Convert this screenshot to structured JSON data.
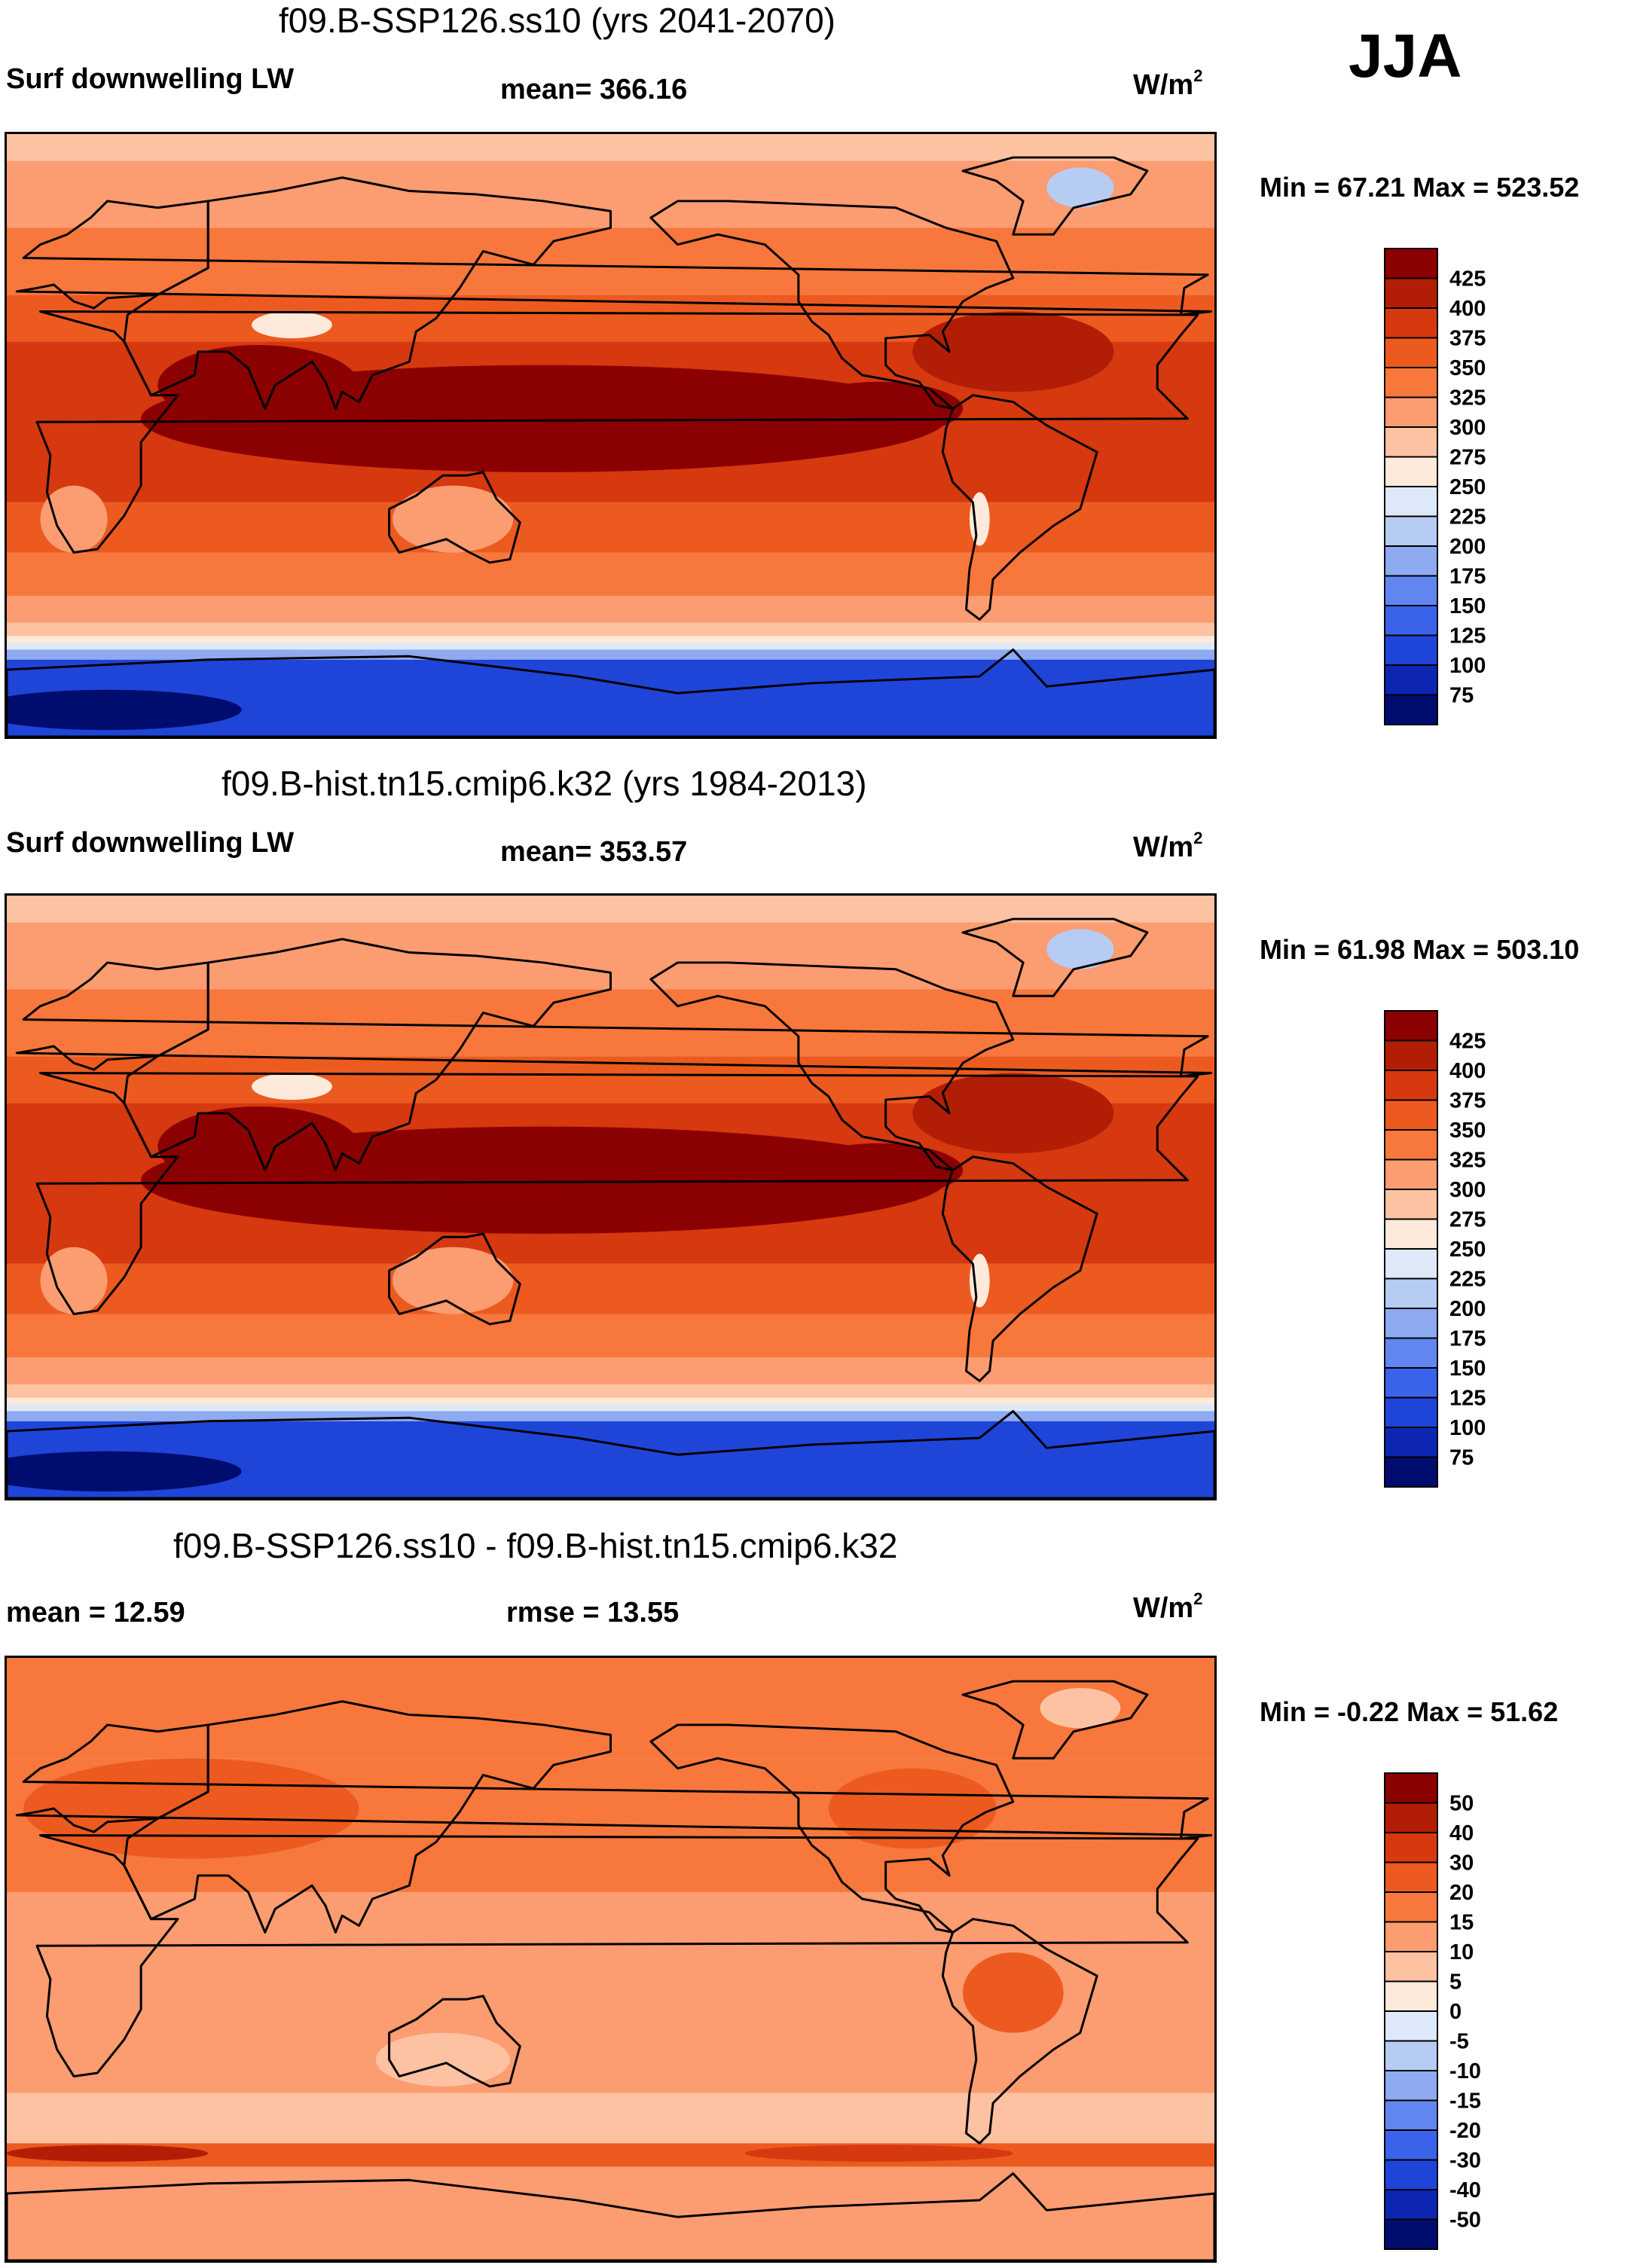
{
  "season": "JJA",
  "variable_label": "Surf downwelling LW",
  "units": "W/m",
  "units_sup": "2",
  "panels": [
    {
      "title": "f09.B-SSP126.ss10 (yrs 2041-2070)",
      "left_label": "Surf downwelling LW",
      "stat_label": "mean= 366.16",
      "units": "W/m",
      "units_sup": "2",
      "minmax": "Min =  67.21 Max = 523.52"
    },
    {
      "title": "f09.B-hist.tn15.cmip6.k32 (yrs 1984-2013)",
      "left_label": "Surf downwelling LW",
      "stat_label": "mean= 353.57",
      "units": "W/m",
      "units_sup": "2",
      "minmax": "Min = 61.98 Max = 503.10"
    },
    {
      "title": "f09.B-SSP126.ss10 - f09.B-hist.tn15.cmip6.k32",
      "left_label": "mean =  12.59",
      "stat_label": "rmse =  13.55",
      "units": "W/m",
      "units_sup": "2",
      "minmax": "Min =  -0.22 Max =  51.62"
    }
  ],
  "chart_data": [
    {
      "type": "heatmap",
      "title": "f09.B-SSP126.ss10 (yrs 2041-2070)",
      "variable": "Surf downwelling LW",
      "units": "W/m2",
      "mean": 366.16,
      "min": 67.21,
      "max": 523.52,
      "colorbar_levels": [
        "425",
        "400",
        "375",
        "350",
        "325",
        "300",
        "275",
        "250",
        "225",
        "200",
        "175",
        "150",
        "125",
        "100",
        "75"
      ],
      "colorbar_colors": [
        "#8b0000",
        "#b21e05",
        "#d6380f",
        "#ec5a20",
        "#f7773c",
        "#fb9c71",
        "#fdc2a2",
        "#feeada",
        "#dde9f8",
        "#b6ccf3",
        "#8eaaf0",
        "#6286ef",
        "#3b63ea",
        "#1f44d8",
        "#0c26b2",
        "#000d6e"
      ]
    },
    {
      "type": "heatmap",
      "title": "f09.B-hist.tn15.cmip6.k32 (yrs 1984-2013)",
      "variable": "Surf downwelling LW",
      "units": "W/m2",
      "mean": 353.57,
      "min": 61.98,
      "max": 503.1,
      "colorbar_levels": [
        "425",
        "400",
        "375",
        "350",
        "325",
        "300",
        "275",
        "250",
        "225",
        "200",
        "175",
        "150",
        "125",
        "100",
        "75"
      ],
      "colorbar_colors": [
        "#8b0000",
        "#b21e05",
        "#d6380f",
        "#ec5a20",
        "#f7773c",
        "#fb9c71",
        "#fdc2a2",
        "#feeada",
        "#dde9f8",
        "#b6ccf3",
        "#8eaaf0",
        "#6286ef",
        "#3b63ea",
        "#1f44d8",
        "#0c26b2",
        "#000d6e"
      ]
    },
    {
      "type": "heatmap",
      "title": "f09.B-SSP126.ss10 - f09.B-hist.tn15.cmip6.k32",
      "variable": "Surf downwelling LW difference",
      "units": "W/m2",
      "mean": 12.59,
      "rmse": 13.55,
      "min": -0.22,
      "max": 51.62,
      "colorbar_levels": [
        "50",
        "40",
        "30",
        "20",
        "15",
        "10",
        "5",
        "0",
        "-5",
        "-10",
        "-15",
        "-20",
        "-30",
        "-40",
        "-50"
      ],
      "colorbar_colors": [
        "#8b0000",
        "#b21e05",
        "#d6380f",
        "#ec5a20",
        "#f7773c",
        "#fb9c71",
        "#fdc2a2",
        "#feeada",
        "#dde9f8",
        "#b6ccf3",
        "#8eaaf0",
        "#6286ef",
        "#3b63ea",
        "#1f44d8",
        "#0c26b2",
        "#000d6e"
      ]
    }
  ]
}
